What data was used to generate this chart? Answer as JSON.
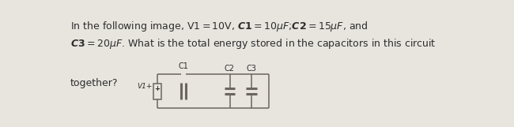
{
  "bg_color": "#e8e5df",
  "text_color": "#2d2d2d",
  "line_color": "#6b6560",
  "figsize": [
    6.5,
    1.61
  ],
  "dpi": 100,
  "together_label": "together?",
  "v1_label": "V1+",
  "c1_label": "C1",
  "c2_label": "C2",
  "c3_label": "C3",
  "text_fs": 9.0,
  "circ_fs": 7.0,
  "lw_thin": 1.1,
  "lw_thick": 2.2
}
